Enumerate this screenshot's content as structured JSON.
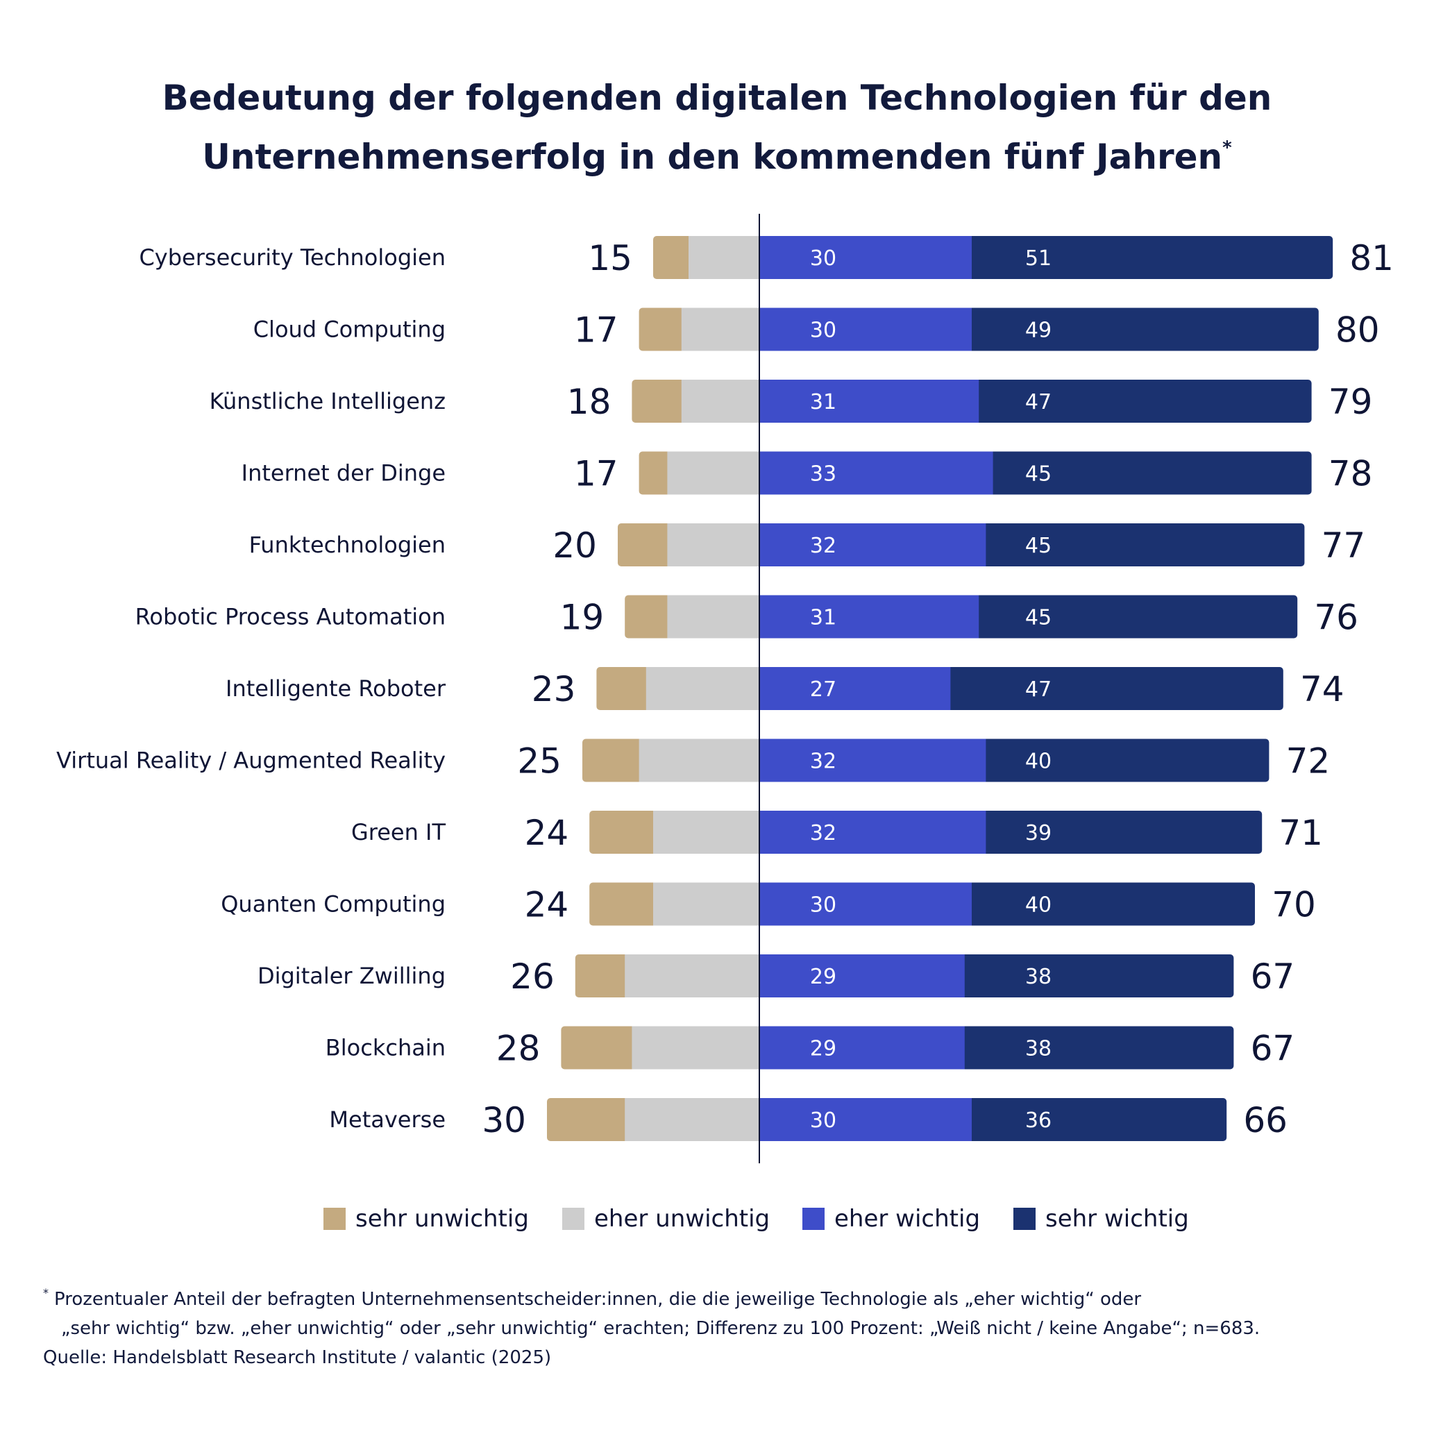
{
  "title": {
    "line1": "Bedeutung der folgenden digitalen Technologien für den",
    "line2": "Unternehmenserfolg in den kommenden fünf Jahren",
    "marker": "*"
  },
  "colors": {
    "sehr_unwichtig": "#c4aa80",
    "eher_unwichtig": "#cdcdcd",
    "eher_wichtig": "#3e4dc9",
    "sehr_wichtig": "#1b3270",
    "text": "#0f1535"
  },
  "chart_data": {
    "type": "bar",
    "orientation": "horizontal-diverging",
    "categories": [
      "Cybersecurity Technologien",
      "Cloud Computing",
      "Künstliche Intelligenz",
      "Internet der Dinge",
      "Funktechnologien",
      "Robotic Process Automation",
      "Intelligente Roboter",
      "Virtual Reality / Augmented Reality",
      "Green IT",
      "Quanten Computing",
      "Digitaler Zwilling",
      "Blockchain",
      "Metaverse"
    ],
    "series": [
      {
        "name": "sehr unwichtig",
        "values": [
          5,
          6,
          7,
          4,
          7,
          6,
          7,
          8,
          9,
          9,
          7,
          10,
          11
        ]
      },
      {
        "name": "eher unwichtig",
        "values": [
          10,
          11,
          11,
          13,
          13,
          13,
          16,
          17,
          15,
          15,
          19,
          18,
          19
        ]
      },
      {
        "name": "eher wichtig",
        "values": [
          30,
          30,
          31,
          33,
          32,
          31,
          27,
          32,
          32,
          30,
          29,
          29,
          30
        ]
      },
      {
        "name": "sehr wichtig",
        "values": [
          51,
          49,
          47,
          45,
          45,
          45,
          47,
          40,
          39,
          40,
          38,
          38,
          36
        ]
      }
    ],
    "totals_unwichtig": [
      15,
      17,
      18,
      17,
      20,
      19,
      23,
      25,
      24,
      24,
      26,
      28,
      30
    ],
    "totals_wichtig": [
      81,
      80,
      79,
      78,
      77,
      76,
      74,
      72,
      71,
      70,
      67,
      67,
      66
    ],
    "legend_position": "bottom",
    "grid": false
  },
  "footnote": {
    "marker": "*",
    "line1": "Prozentualer Anteil der befragten Unternehmensentscheider:innen, die die jeweilige Technologie als „eher wichtig“ oder",
    "line2": "„sehr wichtig“ bzw. „eher unwichtig“ oder „sehr unwichtig“ erachten; Differenz zu 100 Prozent: „Weiß nicht / keine Angabe“; n=683.",
    "source": "Quelle: Handelsblatt Research Institute / valantic (2025)"
  }
}
